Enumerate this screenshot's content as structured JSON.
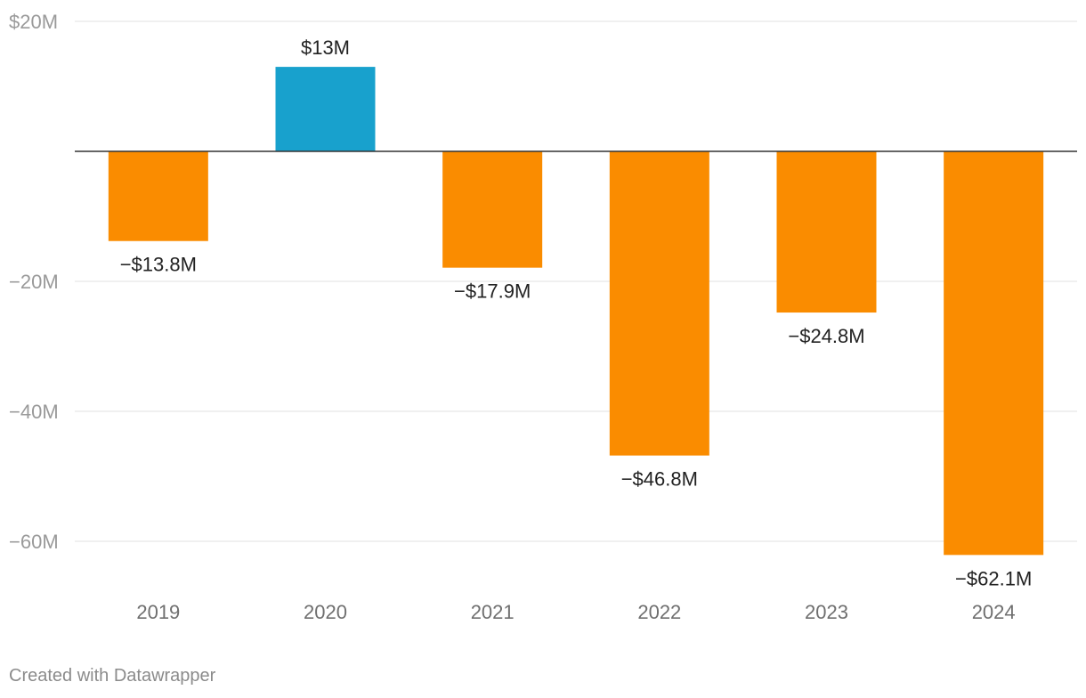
{
  "chart_data": {
    "type": "bar",
    "categories": [
      "2019",
      "2020",
      "2021",
      "2022",
      "2023",
      "2024"
    ],
    "values": [
      -13.8,
      13,
      -17.9,
      -46.8,
      -24.8,
      -62.1
    ],
    "value_labels": [
      "−$13.8M",
      "$13M",
      "−$17.9M",
      "−$46.8M",
      "−$24.8M",
      "−$62.1M"
    ],
    "unit": "$M",
    "ylim": [
      -70,
      20
    ],
    "yticks": [
      {
        "value": 20,
        "label": "$20M"
      },
      {
        "value": -20,
        "label": "−20M"
      },
      {
        "value": -40,
        "label": "−40M"
      },
      {
        "value": -60,
        "label": "−60M"
      }
    ],
    "grid": true,
    "colors": {
      "positive": "#18a1cd",
      "negative": "#fa8c00",
      "baseline": "#333333",
      "grid": "#e2e2e2"
    }
  },
  "footer": {
    "credit": "Created with Datawrapper"
  }
}
